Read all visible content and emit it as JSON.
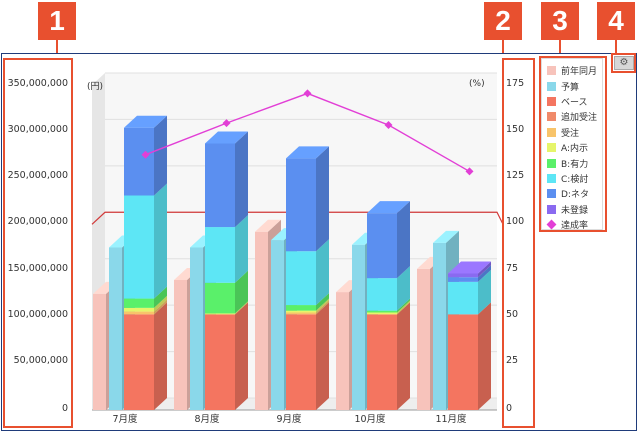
{
  "callouts": [
    "1",
    "2",
    "3",
    "4"
  ],
  "gear_icon_glyph": "⚙",
  "chart_data": {
    "type": "bar",
    "categories": [
      "7月度",
      "8月度",
      "9月度",
      "10月度",
      "11月度"
    ],
    "left_unit": "(円)",
    "right_unit": "(%)",
    "y_left_ticks": [
      "350,000,000",
      "300,000,000",
      "250,000,000",
      "200,000,000",
      "150,000,000",
      "100,000,000",
      "50,000,000",
      "0"
    ],
    "y_right_ticks": [
      "175",
      "150",
      "125",
      "100",
      "75",
      "50",
      "25",
      "0"
    ],
    "ylim_left": [
      0,
      350000000
    ],
    "ylim_right": [
      0,
      175
    ],
    "previous_year": [
      125000000,
      140000000,
      192000000,
      127000000,
      152000000
    ],
    "budget": [
      175000000,
      175000000,
      183000000,
      178000000,
      180000000
    ],
    "stack_series": [
      {
        "name": "ベース",
        "color": "#f47560",
        "values": [
          103000000,
          103000000,
          103000000,
          103000000,
          103000000
        ]
      },
      {
        "name": "追加受注",
        "color": "#f08a6a",
        "values": [
          0,
          0,
          0,
          0,
          0
        ]
      },
      {
        "name": "受注",
        "color": "#f8c46a",
        "values": [
          3000000,
          0,
          2000000,
          0,
          0
        ]
      },
      {
        "name": "A:内示",
        "color": "#e6f56a",
        "values": [
          4000000,
          1000000,
          2000000,
          2000000,
          0
        ]
      },
      {
        "name": "B:有力",
        "color": "#5af06a",
        "values": [
          10000000,
          33000000,
          6000000,
          2000000,
          0
        ]
      },
      {
        "name": "C:検討",
        "color": "#5de6f5",
        "values": [
          111000000,
          60000000,
          58000000,
          35000000,
          35000000
        ]
      },
      {
        "name": "D:ネタ",
        "color": "#5b8ff0",
        "values": [
          73000000,
          90000000,
          100000000,
          70000000,
          5000000
        ]
      },
      {
        "name": "未登録",
        "color": "#8a6af0",
        "values": [
          0,
          0,
          0,
          0,
          4000000
        ]
      }
    ],
    "achievement_rate": [
      131,
      148,
      164,
      147,
      122
    ],
    "target_line_value": 100
  },
  "legend": [
    {
      "label": "前年同月",
      "color": "#f7c3bb",
      "shape": "square"
    },
    {
      "label": "予算",
      "color": "#8ad8ea",
      "shape": "square"
    },
    {
      "label": "ベース",
      "color": "#f47560",
      "shape": "square"
    },
    {
      "label": "追加受注",
      "color": "#f08a6a",
      "shape": "square"
    },
    {
      "label": "受注",
      "color": "#f8c46a",
      "shape": "square"
    },
    {
      "label": "A:内示",
      "color": "#e6f56a",
      "shape": "square"
    },
    {
      "label": "B:有力",
      "color": "#5af06a",
      "shape": "square"
    },
    {
      "label": "C:検討",
      "color": "#5de6f5",
      "shape": "square"
    },
    {
      "label": "D:ネタ",
      "color": "#5b8ff0",
      "shape": "square"
    },
    {
      "label": "未登録",
      "color": "#8a6af0",
      "shape": "square"
    },
    {
      "label": "達成率",
      "color": "#e23fd6",
      "shape": "diamond"
    }
  ]
}
